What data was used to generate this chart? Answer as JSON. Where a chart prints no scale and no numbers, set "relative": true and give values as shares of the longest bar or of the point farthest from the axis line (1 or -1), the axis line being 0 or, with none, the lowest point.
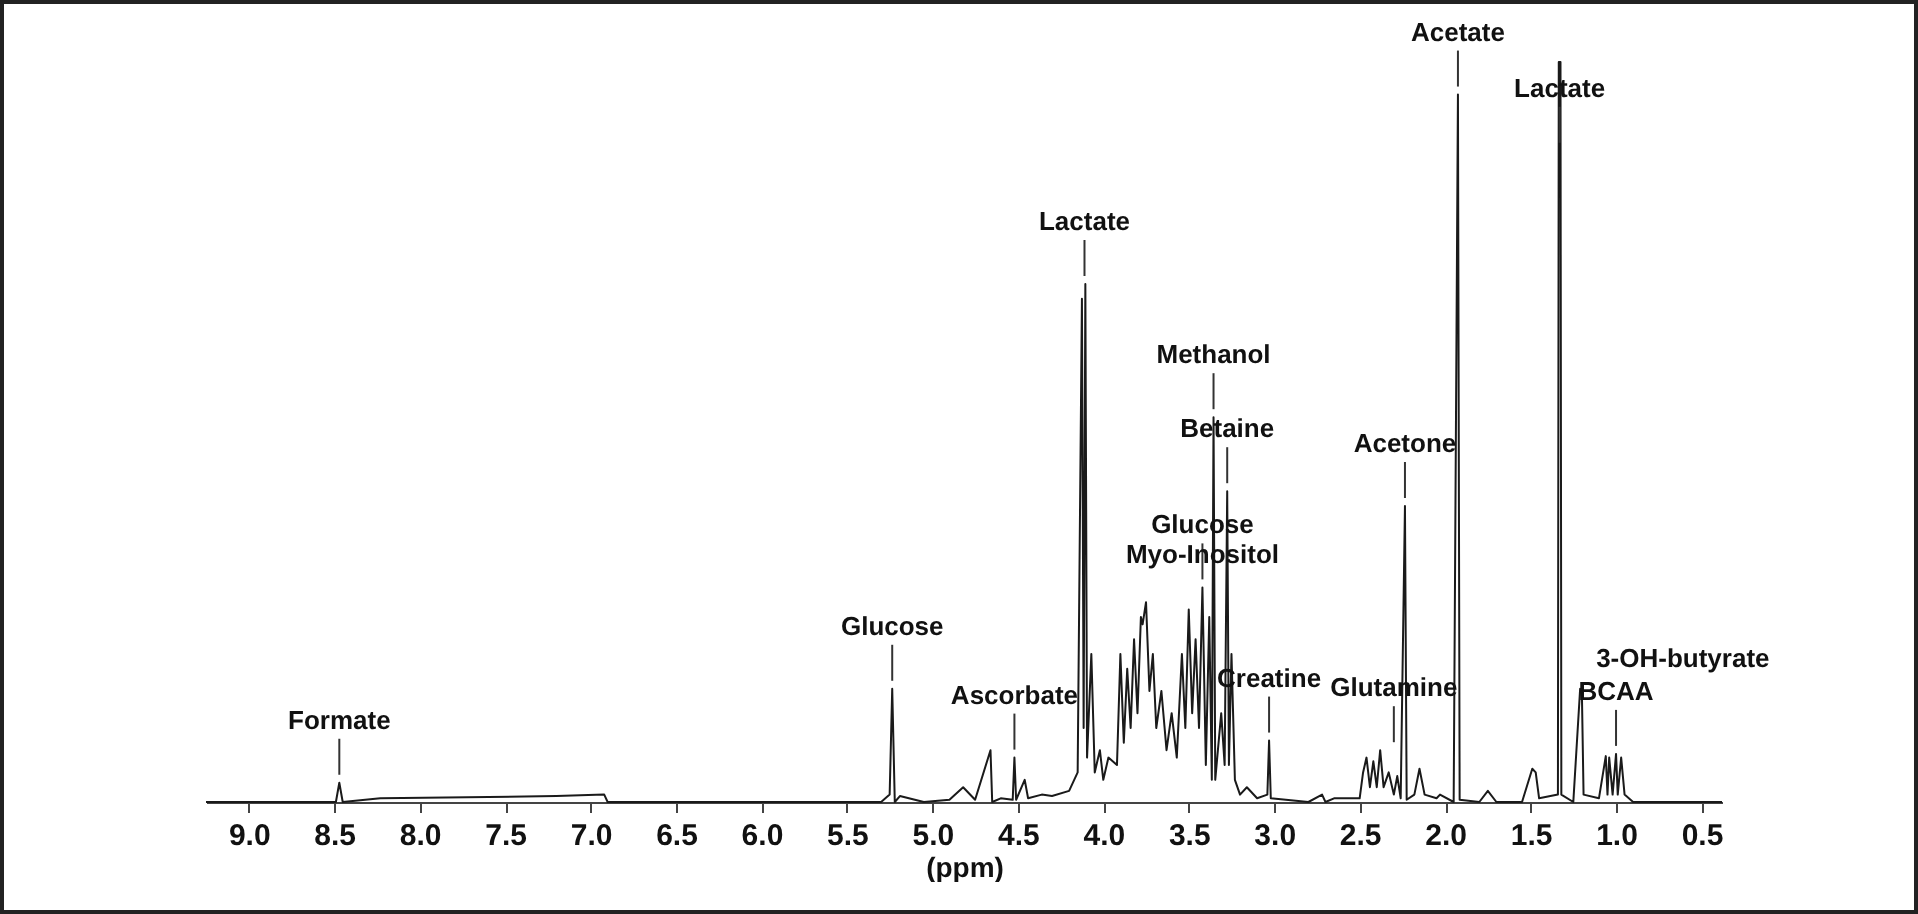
{
  "chart_data": {
    "type": "line",
    "relative": true,
    "xlabel": "(ppm)",
    "xlim": [
      9.25,
      0.38
    ],
    "xticks": [
      {
        "value": 9.0,
        "label": "9.0"
      },
      {
        "value": 8.5,
        "label": "8.5"
      },
      {
        "value": 8.0,
        "label": "8.0"
      },
      {
        "value": 7.5,
        "label": "7.5"
      },
      {
        "value": 7.0,
        "label": "7.0"
      },
      {
        "value": 6.5,
        "label": "6.5"
      },
      {
        "value": 6.0,
        "label": "6.0"
      },
      {
        "value": 5.5,
        "label": "5.5"
      },
      {
        "value": 5.0,
        "label": "5.0"
      },
      {
        "value": 4.5,
        "label": "4.5"
      },
      {
        "value": 4.0,
        "label": "4.0"
      },
      {
        "value": 3.5,
        "label": "3.5"
      },
      {
        "value": 3.0,
        "label": "3.0"
      },
      {
        "value": 2.5,
        "label": "2.5"
      },
      {
        "value": 2.0,
        "label": "2.0"
      },
      {
        "value": 1.5,
        "label": "1.5"
      },
      {
        "value": 1.0,
        "label": "1.0"
      },
      {
        "value": 0.5,
        "label": "0.5"
      }
    ],
    "grid": false,
    "marker": "none",
    "line_style": "solid",
    "x": [
      9.25,
      8.49,
      8.47,
      8.45,
      8.23,
      7.2,
      6.92,
      6.9,
      5.3,
      5.25,
      5.235,
      5.22,
      5.19,
      5.05,
      4.9,
      4.82,
      4.75,
      4.66,
      4.65,
      4.6,
      4.53,
      4.52,
      4.51,
      4.46,
      4.44,
      4.36,
      4.3,
      4.2,
      4.15,
      4.125,
      4.115,
      4.105,
      4.095,
      4.07,
      4.05,
      4.02,
      4.0,
      3.97,
      3.92,
      3.9,
      3.88,
      3.86,
      3.84,
      3.82,
      3.8,
      3.78,
      3.77,
      3.75,
      3.73,
      3.71,
      3.69,
      3.66,
      3.63,
      3.6,
      3.57,
      3.54,
      3.52,
      3.5,
      3.48,
      3.46,
      3.44,
      3.42,
      3.4,
      3.38,
      3.365,
      3.355,
      3.345,
      3.31,
      3.29,
      3.275,
      3.265,
      3.25,
      3.23,
      3.2,
      3.16,
      3.1,
      3.04,
      3.03,
      3.02,
      2.8,
      2.72,
      2.7,
      2.65,
      2.5,
      2.48,
      2.46,
      2.44,
      2.42,
      2.4,
      2.38,
      2.36,
      2.33,
      2.3,
      2.28,
      2.26,
      2.235,
      2.225,
      2.18,
      2.15,
      2.12,
      2.05,
      2.03,
      1.95,
      1.925,
      1.915,
      1.8,
      1.75,
      1.7,
      1.55,
      1.49,
      1.47,
      1.45,
      1.34,
      1.335,
      1.325,
      1.32,
      1.25,
      1.21,
      1.2,
      1.19,
      1.1,
      1.06,
      1.05,
      1.04,
      1.02,
      1.0,
      0.99,
      0.97,
      0.95,
      0.9,
      0.38
    ],
    "series": [
      {
        "color": "#1a1a1a",
        "values": [
          0,
          0,
          0.026,
          0,
          0.005,
          0.008,
          0.01,
          0,
          0,
          0.01,
          0.153,
          0,
          0.008,
          0,
          0.003,
          0.02,
          0.003,
          0.07,
          0,
          0.005,
          0.003,
          0.06,
          0.003,
          0.03,
          0.005,
          0.01,
          0.008,
          0.015,
          0.04,
          0.68,
          0.1,
          0.7,
          0.06,
          0.2,
          0.04,
          0.07,
          0.03,
          0.06,
          0.05,
          0.2,
          0.08,
          0.18,
          0.1,
          0.22,
          0.12,
          0.25,
          0.24,
          0.27,
          0.15,
          0.2,
          0.1,
          0.15,
          0.07,
          0.12,
          0.06,
          0.2,
          0.1,
          0.26,
          0.12,
          0.22,
          0.1,
          0.29,
          0.05,
          0.25,
          0.03,
          0.52,
          0.03,
          0.12,
          0.05,
          0.42,
          0.05,
          0.2,
          0.03,
          0.01,
          0.02,
          0.005,
          0.01,
          0.083,
          0.005,
          0,
          0.01,
          0,
          0.005,
          0.005,
          0.04,
          0.06,
          0.02,
          0.055,
          0.02,
          0.07,
          0.02,
          0.04,
          0.01,
          0.035,
          0.005,
          0.4,
          0.003,
          0.01,
          0.045,
          0.01,
          0.005,
          0.01,
          0,
          0.956,
          0.003,
          0,
          0.015,
          0,
          0,
          0.045,
          0.04,
          0.005,
          0.01,
          1.0,
          1.0,
          0.01,
          0,
          0.153,
          0.15,
          0.01,
          0.005,
          0.062,
          0.01,
          0.06,
          0.01,
          0.065,
          0.01,
          0.06,
          0.01,
          0,
          0
        ]
      }
    ],
    "annotations": [
      {
        "text": "Formate",
        "x": 8.47,
        "y": 0.026
      },
      {
        "text": "Glucose",
        "x": 5.235,
        "y": 0.153
      },
      {
        "text": "Ascorbate",
        "x": 4.52,
        "y": 0.06
      },
      {
        "text": "Lactate",
        "x": 4.11,
        "y": 0.7
      },
      {
        "text": "Glucose\nMyo-Inositol",
        "x": 3.42,
        "y": 0.29
      },
      {
        "text": "Methanol",
        "x": 3.355,
        "y": 0.52
      },
      {
        "text": "Betaine",
        "x": 3.275,
        "y": 0.42
      },
      {
        "text": "Creatine",
        "x": 3.03,
        "y": 0.083
      },
      {
        "text": "Acetone",
        "x": 2.235,
        "y": 0.4
      },
      {
        "text": "Glutamine",
        "x": 2.3,
        "y": 0.07
      },
      {
        "text": "Acetate",
        "x": 1.925,
        "y": 0.956
      },
      {
        "text": "Lactate",
        "x": 1.33,
        "y": 0.88
      },
      {
        "text": "3-OH-butyrate",
        "x": 1.21,
        "y": 0.153
      },
      {
        "text": "BCAA",
        "x": 1.0,
        "y": 0.065
      }
    ]
  }
}
